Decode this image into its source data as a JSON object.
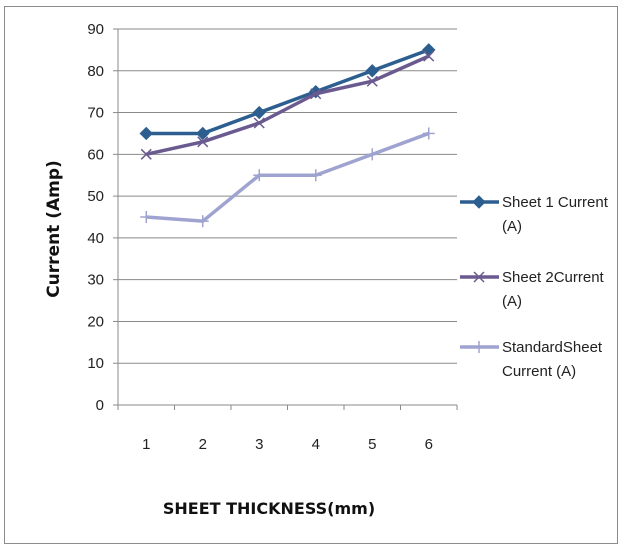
{
  "chart_data": {
    "type": "line",
    "categories": [
      "1",
      "2",
      "3",
      "4",
      "5",
      "6"
    ],
    "series": [
      {
        "name": "Sheet 1 Current (A)",
        "name_lines": [
          "Sheet 1 Current",
          "(A)"
        ],
        "values": [
          65,
          65,
          70,
          75,
          80,
          85
        ],
        "color": "#2c5f8f",
        "marker": "diamond"
      },
      {
        "name": "Sheet 2Current (A)",
        "name_lines": [
          "Sheet 2Current",
          "(A)"
        ],
        "values": [
          60,
          63,
          67.5,
          74.5,
          77.5,
          83.5
        ],
        "color": "#6a5a8f",
        "marker": "x"
      },
      {
        "name": "StandardSheet Current (A)",
        "name_lines": [
          "StandardSheet",
          "Current (A)"
        ],
        "values": [
          45,
          44,
          55,
          55,
          60,
          65
        ],
        "color": "#9fa3d0",
        "marker": "plus"
      }
    ],
    "title": "",
    "xlabel": "SHEET THICKNESS(mm)",
    "ylabel": "Current (Amp)",
    "ylim": [
      0,
      90
    ],
    "yticks": [
      "0",
      "10",
      "20",
      "30",
      "40",
      "50",
      "60",
      "70",
      "80",
      "90"
    ],
    "grid": true,
    "legend": "right"
  }
}
